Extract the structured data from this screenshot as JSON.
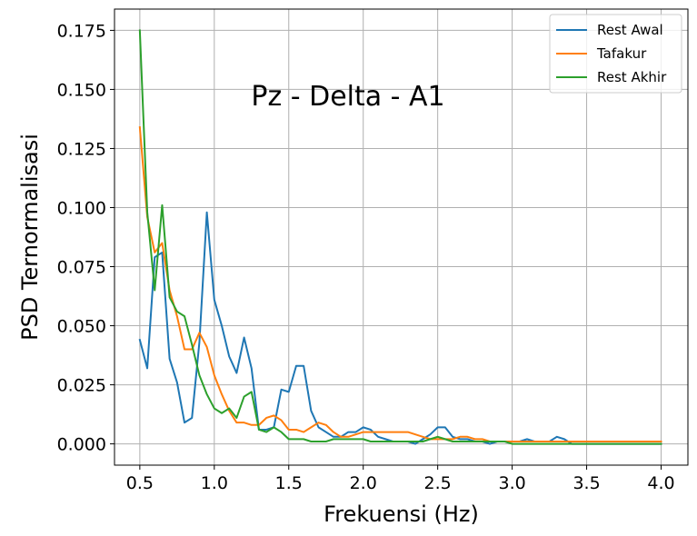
{
  "chart_data": {
    "type": "line",
    "title": "Pz - Delta - A1",
    "xlabel": "Frekuensi (Hz)",
    "ylabel": "PSD Ternormalisasi",
    "xlim": [
      0.33,
      4.18
    ],
    "ylim": [
      -0.009,
      0.184
    ],
    "xticks": [
      0.5,
      1.0,
      1.5,
      2.0,
      2.5,
      3.0,
      3.5,
      4.0
    ],
    "xtick_labels": [
      "0.5",
      "1.0",
      "1.5",
      "2.0",
      "2.5",
      "3.0",
      "3.5",
      "4.0"
    ],
    "yticks": [
      0.0,
      0.025,
      0.05,
      0.075,
      0.1,
      0.125,
      0.15,
      0.175
    ],
    "ytick_labels": [
      "0.000",
      "0.025",
      "0.050",
      "0.075",
      "0.100",
      "0.125",
      "0.150",
      "0.175"
    ],
    "grid": true,
    "legend_position": "top-right",
    "x": [
      0.5,
      0.55,
      0.6,
      0.65,
      0.7,
      0.75,
      0.8,
      0.85,
      0.9,
      0.95,
      1.0,
      1.05,
      1.1,
      1.15,
      1.2,
      1.25,
      1.3,
      1.35,
      1.4,
      1.45,
      1.5,
      1.55,
      1.6,
      1.65,
      1.7,
      1.75,
      1.8,
      1.85,
      1.9,
      1.95,
      2.0,
      2.05,
      2.1,
      2.15,
      2.2,
      2.25,
      2.3,
      2.35,
      2.4,
      2.45,
      2.5,
      2.55,
      2.6,
      2.65,
      2.7,
      2.75,
      2.8,
      2.85,
      2.9,
      2.95,
      3.0,
      3.05,
      3.1,
      3.15,
      3.2,
      3.25,
      3.3,
      3.35,
      3.4,
      3.45,
      3.5,
      3.55,
      3.6,
      3.65,
      3.7,
      3.75,
      3.8,
      3.85,
      3.9,
      3.95,
      4.0
    ],
    "series": [
      {
        "name": "Rest Awal",
        "color": "#1f77b4",
        "values": [
          0.044,
          0.032,
          0.079,
          0.081,
          0.036,
          0.026,
          0.009,
          0.011,
          0.043,
          0.098,
          0.061,
          0.05,
          0.037,
          0.03,
          0.045,
          0.032,
          0.006,
          0.006,
          0.007,
          0.023,
          0.022,
          0.033,
          0.033,
          0.014,
          0.007,
          0.005,
          0.003,
          0.003,
          0.005,
          0.005,
          0.007,
          0.006,
          0.003,
          0.002,
          0.001,
          0.001,
          0.001,
          0.0,
          0.002,
          0.004,
          0.007,
          0.007,
          0.003,
          0.002,
          0.002,
          0.001,
          0.001,
          0.0,
          0.001,
          0.001,
          0.001,
          0.001,
          0.002,
          0.001,
          0.001,
          0.001,
          0.003,
          0.002,
          0.0,
          0.0,
          0.0,
          0.0,
          0.0,
          0.0,
          0.0,
          0.0,
          0.0,
          0.0,
          0.0,
          0.0,
          0.0
        ]
      },
      {
        "name": "Tafakur",
        "color": "#ff7f0e",
        "values": [
          0.134,
          0.096,
          0.081,
          0.085,
          0.065,
          0.054,
          0.04,
          0.04,
          0.047,
          0.041,
          0.029,
          0.021,
          0.014,
          0.009,
          0.009,
          0.008,
          0.008,
          0.011,
          0.012,
          0.01,
          0.006,
          0.006,
          0.005,
          0.007,
          0.009,
          0.008,
          0.005,
          0.003,
          0.003,
          0.004,
          0.005,
          0.005,
          0.005,
          0.005,
          0.005,
          0.005,
          0.005,
          0.004,
          0.003,
          0.002,
          0.002,
          0.002,
          0.002,
          0.003,
          0.003,
          0.002,
          0.002,
          0.001,
          0.001,
          0.001,
          0.001,
          0.001,
          0.001,
          0.001,
          0.001,
          0.001,
          0.001,
          0.001,
          0.001,
          0.001,
          0.001,
          0.001,
          0.001,
          0.001,
          0.001,
          0.001,
          0.001,
          0.001,
          0.001,
          0.001,
          0.001
        ]
      },
      {
        "name": "Rest Akhir",
        "color": "#2ca02c",
        "values": [
          0.175,
          0.098,
          0.065,
          0.101,
          0.062,
          0.056,
          0.054,
          0.042,
          0.029,
          0.021,
          0.015,
          0.013,
          0.015,
          0.011,
          0.02,
          0.022,
          0.006,
          0.005,
          0.007,
          0.005,
          0.002,
          0.002,
          0.002,
          0.001,
          0.001,
          0.001,
          0.002,
          0.002,
          0.002,
          0.002,
          0.002,
          0.001,
          0.001,
          0.001,
          0.001,
          0.001,
          0.001,
          0.001,
          0.001,
          0.002,
          0.003,
          0.002,
          0.001,
          0.001,
          0.001,
          0.001,
          0.001,
          0.001,
          0.001,
          0.001,
          0.0,
          0.0,
          0.0,
          0.0,
          0.0,
          0.0,
          0.0,
          0.0,
          0.0,
          0.0,
          0.0,
          0.0,
          0.0,
          0.0,
          0.0,
          0.0,
          0.0,
          0.0,
          0.0,
          0.0,
          0.0
        ]
      }
    ]
  }
}
